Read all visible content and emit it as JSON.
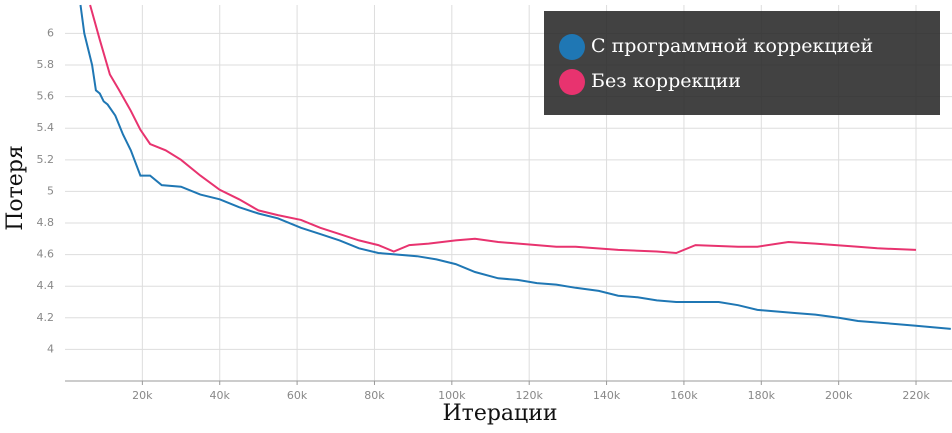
{
  "chart_data": {
    "type": "line",
    "xlabel": "Итерации",
    "ylabel": "Потеря",
    "xlim": [
      0,
      229300
    ],
    "ylim": [
      3.8,
      6.18
    ],
    "xticks": [
      {
        "value": 20000,
        "label": "20k"
      },
      {
        "value": 40000,
        "label": "40k"
      },
      {
        "value": 60000,
        "label": "60k"
      },
      {
        "value": 80000,
        "label": "80k"
      },
      {
        "value": 100000,
        "label": "100k"
      },
      {
        "value": 120000,
        "label": "120k"
      },
      {
        "value": 140000,
        "label": "140k"
      },
      {
        "value": 160000,
        "label": "160k"
      },
      {
        "value": 180000,
        "label": "180k"
      },
      {
        "value": 200000,
        "label": "200k"
      },
      {
        "value": 220000,
        "label": "220k"
      }
    ],
    "yticks": [
      4,
      4.2,
      4.4,
      4.6,
      4.8,
      5,
      5.2,
      5.4,
      5.6,
      5.8,
      6
    ],
    "grid": true,
    "legend": "upper right",
    "series": [
      {
        "name": "С программной коррекцией",
        "color": "#1f77b4",
        "x": [
          4000,
          5000,
          7000,
          8000,
          9000,
          10000,
          11000,
          13000,
          15000,
          17000,
          19500,
          22000,
          25000,
          30000,
          35000,
          40000,
          45000,
          50000,
          55000,
          61000,
          66000,
          71000,
          76000,
          81000,
          86000,
          91000,
          96000,
          101000,
          106000,
          112000,
          117000,
          122000,
          127000,
          132000,
          138000,
          143000,
          148000,
          153000,
          158000,
          163000,
          169000,
          174000,
          179000,
          184000,
          189000,
          194000,
          200000,
          205000,
          210000,
          215000,
          220000,
          229000
        ],
        "values": [
          6.18,
          6.0,
          5.8,
          5.64,
          5.62,
          5.57,
          5.55,
          5.48,
          5.36,
          5.26,
          5.1,
          5.1,
          5.04,
          5.03,
          4.98,
          4.95,
          4.9,
          4.86,
          4.83,
          4.77,
          4.73,
          4.69,
          4.64,
          4.61,
          4.6,
          4.59,
          4.57,
          4.54,
          4.49,
          4.45,
          4.44,
          4.42,
          4.41,
          4.39,
          4.37,
          4.34,
          4.33,
          4.31,
          4.3,
          4.3,
          4.3,
          4.28,
          4.25,
          4.24,
          4.23,
          4.22,
          4.2,
          4.18,
          4.17,
          4.16,
          4.15,
          4.13
        ]
      },
      {
        "name": "Без коррекции",
        "color": "#e8336f",
        "x": [
          6500,
          9000,
          11600,
          14000,
          17000,
          19500,
          22000,
          26000,
          30000,
          35000,
          40000,
          45000,
          50000,
          55000,
          61000,
          66000,
          71000,
          76000,
          81000,
          85000,
          89000,
          94000,
          101000,
          106000,
          112000,
          122000,
          127000,
          132000,
          143000,
          153000,
          158000,
          163000,
          174000,
          179000,
          187000,
          194000,
          205000,
          210000,
          220000
        ],
        "values": [
          6.18,
          5.96,
          5.74,
          5.64,
          5.51,
          5.39,
          5.3,
          5.26,
          5.2,
          5.1,
          5.01,
          4.95,
          4.88,
          4.85,
          4.82,
          4.77,
          4.73,
          4.69,
          4.66,
          4.62,
          4.66,
          4.67,
          4.69,
          4.7,
          4.68,
          4.66,
          4.65,
          4.65,
          4.63,
          4.62,
          4.61,
          4.66,
          4.65,
          4.65,
          4.68,
          4.67,
          4.65,
          4.64,
          4.63
        ]
      }
    ]
  }
}
